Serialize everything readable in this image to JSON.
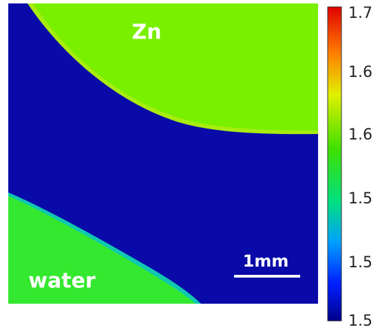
{
  "image": {
    "labels": {
      "top": "Zn",
      "bottom": "water"
    },
    "scale_bar": "1mm"
  },
  "colorbar": {
    "tick_labels": [
      "1.7",
      "1.6",
      "1.6",
      "1.5",
      "1.5",
      "1.5"
    ]
  }
}
